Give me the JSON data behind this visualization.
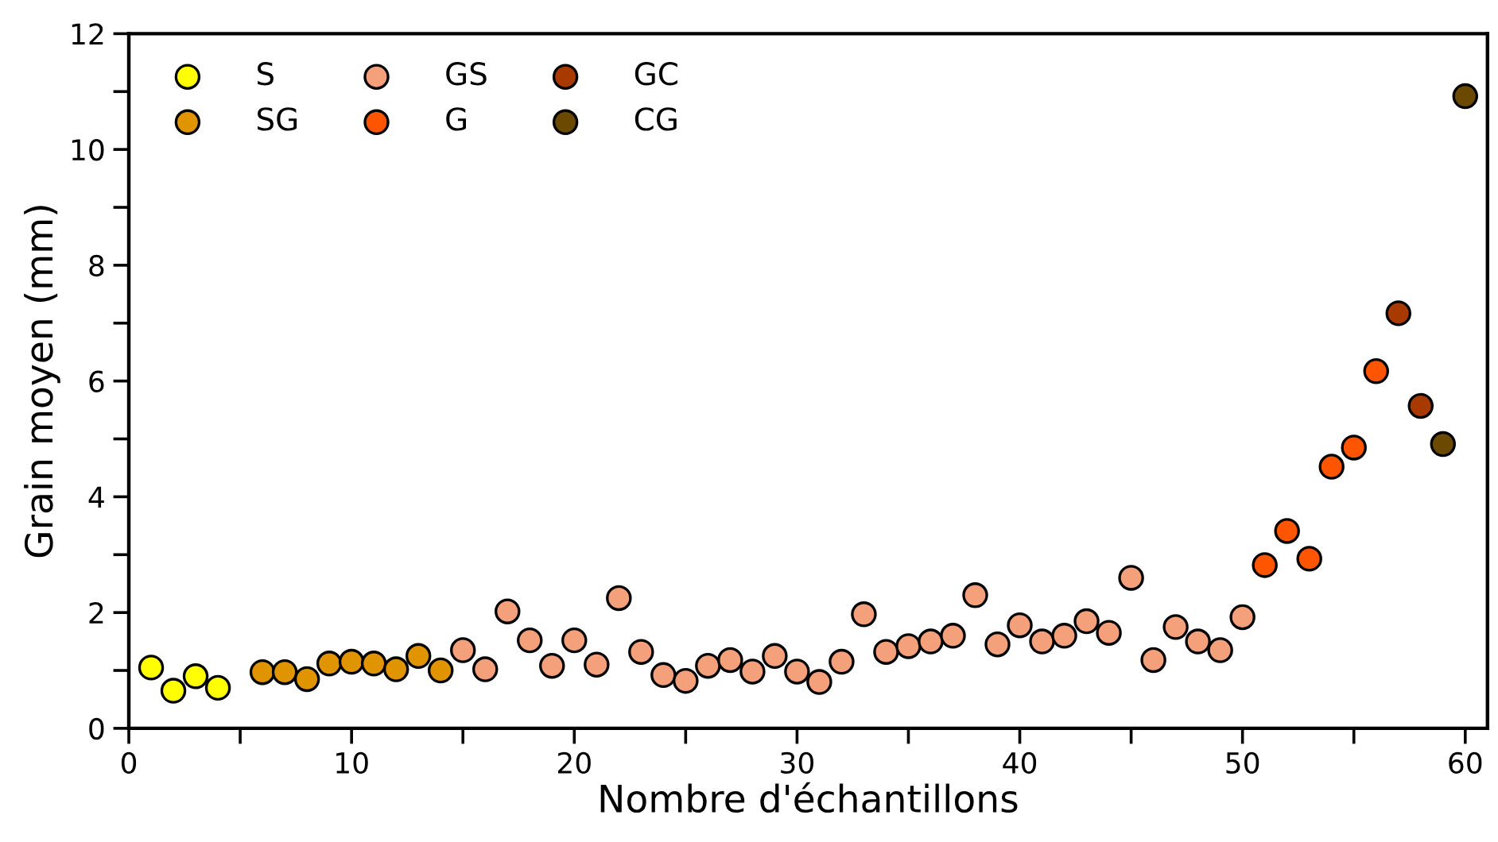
{
  "chart_data": {
    "type": "scatter",
    "xlabel": "Nombre d'échantillons",
    "ylabel": "Grain moyen (mm)",
    "xlim": [
      0,
      61
    ],
    "ylim": [
      0,
      12
    ],
    "xticks": [
      0,
      {
        "value": 5,
        "label": null
      },
      10,
      {
        "value": 15,
        "label": null
      },
      20,
      {
        "value": 25,
        "label": null
      },
      30,
      {
        "value": 35,
        "label": null
      },
      40,
      {
        "value": 45,
        "label": null
      },
      50,
      {
        "value": 55,
        "label": null
      },
      60
    ],
    "yticks": [
      0,
      {
        "value": 1,
        "label": null
      },
      2,
      {
        "value": 3,
        "label": null
      },
      4,
      {
        "value": 5,
        "label": null
      },
      6,
      {
        "value": 7,
        "label": null
      },
      8,
      {
        "value": 9,
        "label": null
      },
      10,
      {
        "value": 11,
        "label": null
      },
      12
    ],
    "marker": "circle",
    "legend": "top left",
    "grid": false,
    "series": [
      {
        "name": "S",
        "color": "#ffff00",
        "x": [
          1,
          2,
          3,
          4
        ],
        "values": [
          1.05,
          0.65,
          0.9,
          0.7
        ]
      },
      {
        "name": "SG",
        "color": "#e09400",
        "x": [
          6,
          7,
          8,
          9,
          10,
          11,
          12,
          13,
          14
        ],
        "values": [
          0.97,
          0.97,
          0.85,
          1.12,
          1.15,
          1.12,
          1.02,
          1.25,
          1.0
        ]
      },
      {
        "name": "GS",
        "color": "#f4a07a",
        "x": [
          15,
          16,
          17,
          18,
          19,
          20,
          21,
          22,
          23,
          24,
          25,
          26,
          27,
          28,
          29,
          30,
          31,
          32,
          33,
          34,
          35,
          36,
          37,
          38,
          39,
          40,
          41,
          42,
          43,
          44,
          45,
          46,
          47,
          48,
          49,
          50
        ],
        "values": [
          1.35,
          1.02,
          2.02,
          1.52,
          1.08,
          1.52,
          1.1,
          2.25,
          1.32,
          0.92,
          0.82,
          1.08,
          1.18,
          0.98,
          1.25,
          0.98,
          0.8,
          1.15,
          1.97,
          1.32,
          1.42,
          1.5,
          1.6,
          2.3,
          1.45,
          1.78,
          1.5,
          1.6,
          1.85,
          1.65,
          2.6,
          1.18,
          1.75,
          1.5,
          1.35,
          1.92
        ]
      },
      {
        "name": "G",
        "color": "#ff5500",
        "x": [
          51,
          52,
          53,
          54,
          55,
          56
        ],
        "values": [
          2.82,
          3.41,
          2.93,
          4.52,
          4.85,
          6.17
        ]
      },
      {
        "name": "GC",
        "color": "#a83a00",
        "x": [
          57,
          58
        ],
        "values": [
          7.17,
          5.57
        ]
      },
      {
        "name": "CG",
        "color": "#6b4a00",
        "x": [
          59,
          60
        ],
        "values": [
          4.91,
          10.92
        ]
      }
    ]
  }
}
